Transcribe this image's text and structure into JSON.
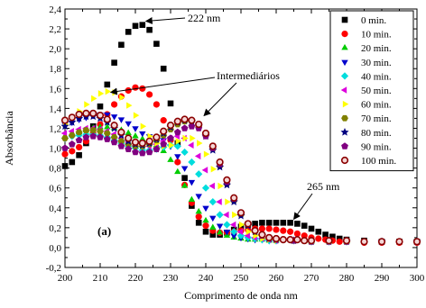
{
  "chart_data": {
    "type": "scatter",
    "xlabel": "Comprimento de onda nm",
    "ylabel": "Absorbância",
    "xlim": [
      200,
      300
    ],
    "ylim": [
      -0.2,
      2.4
    ],
    "xticks": [
      "200",
      "210",
      "220",
      "230",
      "240",
      "250",
      "260",
      "270",
      "280",
      "290",
      "300"
    ],
    "yticks": [
      "-0,2",
      "0,0",
      "0,2",
      "0,4",
      "0,6",
      "0,8",
      "1,0",
      "1,2",
      "1,4",
      "1,6",
      "1,8",
      "2,0",
      "2,2",
      "2,4"
    ],
    "grid": false,
    "legend_position": "top-right",
    "panel_label": "(a)",
    "annotations": [
      {
        "text": "222 nm",
        "target_x": 222,
        "target_y": 2.25
      },
      {
        "text": "Intermediários",
        "target_x": 212,
        "target_y": 1.58
      },
      {
        "text": "Intermediários",
        "target_x": 239,
        "target_y": 1.3
      },
      {
        "text": "265 nm",
        "target_x": 264,
        "target_y": 0.25
      }
    ],
    "series": [
      {
        "name": "0 min.",
        "color": "#000000",
        "marker": "square",
        "x": [
          200,
          202,
          204,
          206,
          208,
          210,
          212,
          214,
          216,
          218,
          220,
          222,
          224,
          226,
          228,
          230,
          232,
          234,
          236,
          238,
          240,
          242,
          244,
          246,
          248,
          250,
          252,
          254,
          256,
          258,
          260,
          262,
          264,
          266,
          268,
          270,
          272,
          274,
          276,
          278,
          280,
          285,
          290,
          295,
          300
        ],
        "y": [
          0.82,
          0.86,
          0.93,
          1.05,
          1.22,
          1.42,
          1.64,
          1.86,
          2.04,
          2.17,
          2.23,
          2.24,
          2.19,
          2.05,
          1.8,
          1.45,
          1.05,
          0.7,
          0.42,
          0.25,
          0.16,
          0.13,
          0.13,
          0.15,
          0.18,
          0.21,
          0.23,
          0.24,
          0.25,
          0.25,
          0.25,
          0.25,
          0.25,
          0.24,
          0.22,
          0.19,
          0.16,
          0.13,
          0.11,
          0.09,
          0.08,
          0.07,
          0.06,
          0.06,
          0.06
        ]
      },
      {
        "name": "10 min.",
        "color": "#ff0000",
        "marker": "circle",
        "x": [
          200,
          202,
          204,
          206,
          208,
          210,
          212,
          214,
          216,
          218,
          220,
          222,
          224,
          226,
          228,
          230,
          232,
          234,
          236,
          238,
          240,
          242,
          244,
          246,
          248,
          250,
          252,
          254,
          256,
          258,
          260,
          262,
          264,
          266,
          268,
          270,
          272,
          274,
          276,
          278,
          280,
          285,
          290,
          295,
          300
        ],
        "y": [
          0.94,
          0.97,
          1.01,
          1.07,
          1.15,
          1.24,
          1.34,
          1.44,
          1.52,
          1.58,
          1.61,
          1.6,
          1.54,
          1.44,
          1.28,
          1.08,
          0.86,
          0.63,
          0.45,
          0.31,
          0.22,
          0.17,
          0.15,
          0.15,
          0.16,
          0.17,
          0.18,
          0.19,
          0.19,
          0.19,
          0.18,
          0.17,
          0.16,
          0.14,
          0.12,
          0.1,
          0.09,
          0.08,
          0.07,
          0.06,
          0.06,
          0.05,
          0.05,
          0.05,
          0.05
        ]
      },
      {
        "name": "20 min.",
        "color": "#00cc00",
        "marker": "triangle-up",
        "x": [
          200,
          202,
          204,
          206,
          208,
          210,
          212,
          214,
          216,
          218,
          220,
          222,
          224,
          226,
          228,
          230,
          232,
          234,
          236,
          238,
          240,
          242,
          244,
          246,
          248,
          250,
          252,
          254,
          256,
          258,
          260,
          265,
          270,
          275,
          280,
          290,
          300
        ],
        "y": [
          1.12,
          1.14,
          1.16,
          1.18,
          1.2,
          1.21,
          1.21,
          1.2,
          1.18,
          1.15,
          1.12,
          1.09,
          1.06,
          1.03,
          0.97,
          0.88,
          0.76,
          0.62,
          0.48,
          0.36,
          0.27,
          0.2,
          0.15,
          0.12,
          0.1,
          0.09,
          0.08,
          0.08,
          0.08,
          0.07,
          0.07,
          0.07,
          0.06,
          0.06,
          0.06,
          0.06,
          0.06
        ]
      },
      {
        "name": "30 min.",
        "color": "#0000cc",
        "marker": "triangle-down",
        "x": [
          200,
          202,
          204,
          206,
          208,
          210,
          212,
          214,
          216,
          218,
          220,
          222,
          224,
          226,
          228,
          230,
          232,
          234,
          236,
          238,
          240,
          242,
          244,
          246,
          248,
          250,
          252,
          254,
          256,
          258,
          260,
          265,
          270,
          275,
          280,
          290,
          300
        ],
        "y": [
          1.24,
          1.26,
          1.29,
          1.31,
          1.33,
          1.34,
          1.34,
          1.32,
          1.29,
          1.25,
          1.2,
          1.15,
          1.12,
          1.1,
          1.08,
          1.02,
          0.92,
          0.8,
          0.66,
          0.52,
          0.4,
          0.3,
          0.22,
          0.16,
          0.12,
          0.1,
          0.09,
          0.08,
          0.08,
          0.07,
          0.07,
          0.07,
          0.06,
          0.06,
          0.06,
          0.06,
          0.06
        ]
      },
      {
        "name": "40 min.",
        "color": "#00dddd",
        "marker": "diamond",
        "x": [
          200,
          202,
          204,
          206,
          208,
          210,
          212,
          214,
          216,
          218,
          220,
          222,
          224,
          226,
          228,
          230,
          232,
          234,
          236,
          238,
          240,
          242,
          244,
          246,
          248,
          250,
          252,
          254,
          256,
          258,
          260,
          265,
          270,
          275,
          280,
          290,
          300
        ],
        "y": [
          1.1,
          1.12,
          1.13,
          1.14,
          1.14,
          1.13,
          1.11,
          1.08,
          1.05,
          1.02,
          1.0,
          0.98,
          0.98,
          0.99,
          1.01,
          1.03,
          1.02,
          0.96,
          0.86,
          0.74,
          0.6,
          0.46,
          0.33,
          0.23,
          0.16,
          0.12,
          0.1,
          0.09,
          0.08,
          0.07,
          0.07,
          0.07,
          0.06,
          0.06,
          0.06,
          0.06,
          0.06
        ]
      },
      {
        "name": "50 min.",
        "color": "#dd00dd",
        "marker": "triangle-left",
        "x": [
          200,
          202,
          204,
          206,
          208,
          210,
          212,
          214,
          216,
          218,
          220,
          222,
          224,
          226,
          228,
          230,
          232,
          234,
          236,
          238,
          240,
          242,
          244,
          246,
          248,
          250,
          252,
          254,
          256,
          258,
          260,
          265,
          270,
          275,
          280,
          290,
          300
        ],
        "y": [
          1.15,
          1.17,
          1.19,
          1.2,
          1.2,
          1.19,
          1.17,
          1.14,
          1.1,
          1.06,
          1.03,
          1.02,
          1.02,
          1.04,
          1.07,
          1.1,
          1.12,
          1.1,
          1.03,
          0.92,
          0.78,
          0.62,
          0.46,
          0.33,
          0.23,
          0.16,
          0.12,
          0.1,
          0.09,
          0.08,
          0.07,
          0.07,
          0.06,
          0.06,
          0.06,
          0.06,
          0.06
        ]
      },
      {
        "name": "60 min.",
        "color": "#ffff00",
        "marker": "triangle-right",
        "x": [
          200,
          202,
          204,
          206,
          208,
          210,
          212,
          214,
          216,
          218,
          220,
          222,
          224,
          226,
          228,
          230,
          232,
          234,
          236,
          238,
          240,
          242,
          244,
          246,
          248,
          250,
          252,
          254,
          256,
          258,
          260,
          265,
          270,
          275,
          280,
          290,
          300
        ],
        "y": [
          1.24,
          1.3,
          1.37,
          1.44,
          1.5,
          1.55,
          1.57,
          1.56,
          1.51,
          1.43,
          1.33,
          1.22,
          1.12,
          1.05,
          1.02,
          1.03,
          1.07,
          1.1,
          1.1,
          1.05,
          0.94,
          0.79,
          0.62,
          0.46,
          0.33,
          0.23,
          0.16,
          0.12,
          0.09,
          0.08,
          0.07,
          0.07,
          0.06,
          0.06,
          0.06,
          0.06,
          0.06
        ]
      },
      {
        "name": "70 min.",
        "color": "#808000",
        "marker": "hexagon",
        "x": [
          200,
          202,
          204,
          206,
          208,
          210,
          212,
          214,
          216,
          218,
          220,
          222,
          224,
          226,
          228,
          230,
          232,
          234,
          236,
          238,
          240,
          242,
          244,
          246,
          248,
          250,
          252,
          254,
          256,
          258,
          260,
          265,
          270,
          275,
          280,
          290,
          300
        ],
        "y": [
          1.1,
          1.13,
          1.16,
          1.18,
          1.18,
          1.17,
          1.15,
          1.11,
          1.07,
          1.04,
          1.02,
          1.02,
          1.04,
          1.08,
          1.13,
          1.19,
          1.24,
          1.27,
          1.27,
          1.22,
          1.13,
          0.99,
          0.82,
          0.64,
          0.47,
          0.33,
          0.23,
          0.16,
          0.12,
          0.09,
          0.08,
          0.07,
          0.06,
          0.06,
          0.06,
          0.06,
          0.06
        ]
      },
      {
        "name": "80 min.",
        "color": "#000080",
        "marker": "star",
        "x": [
          200,
          202,
          204,
          206,
          208,
          210,
          212,
          214,
          216,
          218,
          220,
          222,
          224,
          226,
          228,
          230,
          232,
          234,
          236,
          238,
          240,
          242,
          244,
          246,
          248,
          250,
          252,
          254,
          256,
          258,
          260,
          265,
          270,
          275,
          280,
          290,
          300
        ],
        "y": [
          1.22,
          1.26,
          1.3,
          1.32,
          1.32,
          1.3,
          1.26,
          1.2,
          1.13,
          1.07,
          1.04,
          1.03,
          1.05,
          1.09,
          1.15,
          1.21,
          1.26,
          1.28,
          1.27,
          1.22,
          1.12,
          0.98,
          0.81,
          0.63,
          0.46,
          0.32,
          0.22,
          0.16,
          0.12,
          0.09,
          0.08,
          0.07,
          0.06,
          0.06,
          0.06,
          0.06,
          0.06
        ]
      },
      {
        "name": "90 min.",
        "color": "#800080",
        "marker": "pentagon",
        "x": [
          200,
          202,
          204,
          206,
          208,
          210,
          212,
          214,
          216,
          218,
          220,
          222,
          224,
          226,
          228,
          230,
          232,
          234,
          236,
          238,
          240,
          242,
          244,
          246,
          248,
          250,
          252,
          254,
          256,
          258,
          260,
          265,
          270,
          275,
          280,
          290,
          300
        ],
        "y": [
          1.0,
          1.04,
          1.08,
          1.11,
          1.12,
          1.11,
          1.09,
          1.06,
          1.02,
          0.99,
          0.96,
          0.95,
          0.96,
          0.99,
          1.04,
          1.1,
          1.16,
          1.2,
          1.22,
          1.2,
          1.12,
          1.0,
          0.84,
          0.66,
          0.49,
          0.35,
          0.24,
          0.17,
          0.12,
          0.09,
          0.08,
          0.07,
          0.06,
          0.06,
          0.06,
          0.06,
          0.06
        ]
      },
      {
        "name": "100 min.",
        "color": "#8b0000",
        "marker": "ring",
        "x": [
          200,
          202,
          204,
          206,
          208,
          210,
          212,
          214,
          216,
          218,
          220,
          222,
          224,
          226,
          228,
          230,
          232,
          234,
          236,
          238,
          240,
          242,
          244,
          246,
          248,
          250,
          252,
          254,
          256,
          258,
          260,
          262,
          264,
          266,
          268,
          270,
          275,
          280,
          285,
          290,
          295,
          300
        ],
        "y": [
          1.28,
          1.31,
          1.34,
          1.35,
          1.35,
          1.33,
          1.29,
          1.23,
          1.16,
          1.1,
          1.06,
          1.05,
          1.07,
          1.11,
          1.17,
          1.23,
          1.27,
          1.29,
          1.28,
          1.24,
          1.15,
          1.02,
          0.86,
          0.68,
          0.5,
          0.35,
          0.24,
          0.17,
          0.13,
          0.1,
          0.09,
          0.08,
          0.08,
          0.08,
          0.07,
          0.07,
          0.07,
          0.07,
          0.06,
          0.06,
          0.06,
          0.06
        ]
      }
    ]
  }
}
